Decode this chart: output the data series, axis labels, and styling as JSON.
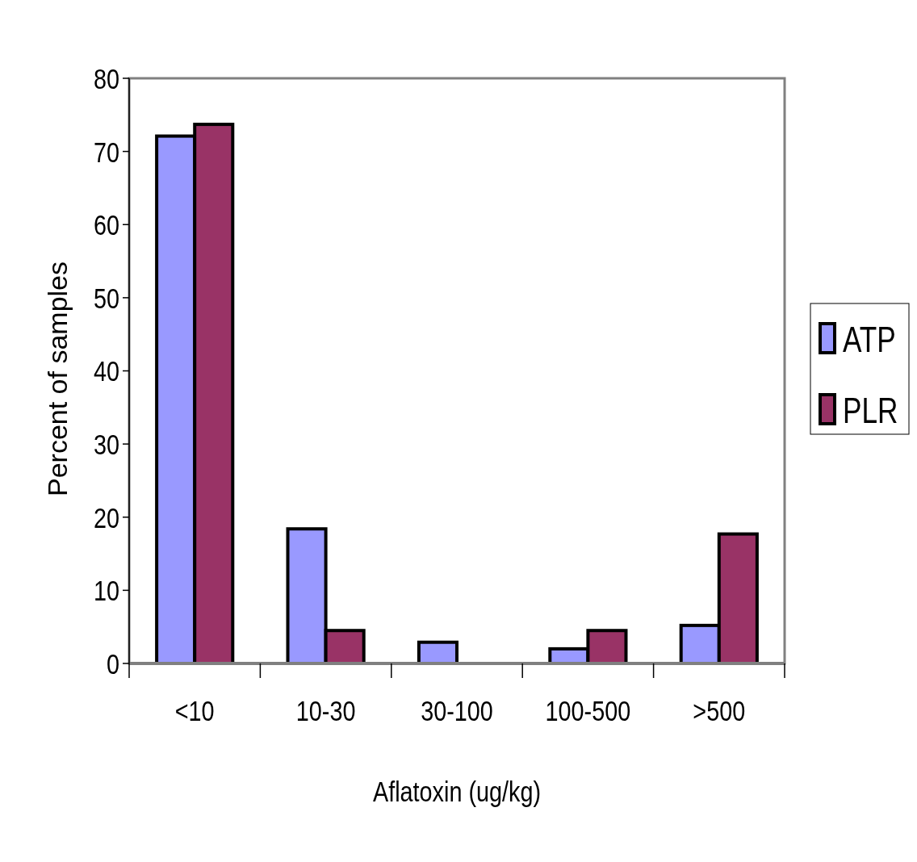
{
  "chart_data": {
    "type": "bar",
    "xlabel": "Aflatoxin (ug/kg)",
    "ylabel": "Percent of samples",
    "categories": [
      "<10",
      "10-30",
      "30-100",
      "100-500",
      ">500"
    ],
    "series": [
      {
        "name": "ATP",
        "color": "#9999ff",
        "values": [
          72.1,
          18.4,
          2.9,
          2.0,
          5.2
        ]
      },
      {
        "name": "PLR",
        "color": "#993366",
        "values": [
          73.7,
          4.5,
          null,
          4.5,
          17.7
        ]
      }
    ],
    "ylim": [
      0,
      80
    ],
    "yticks": [
      0,
      10,
      20,
      30,
      40,
      50,
      60,
      70,
      80
    ],
    "grid": false,
    "legend": "right"
  }
}
